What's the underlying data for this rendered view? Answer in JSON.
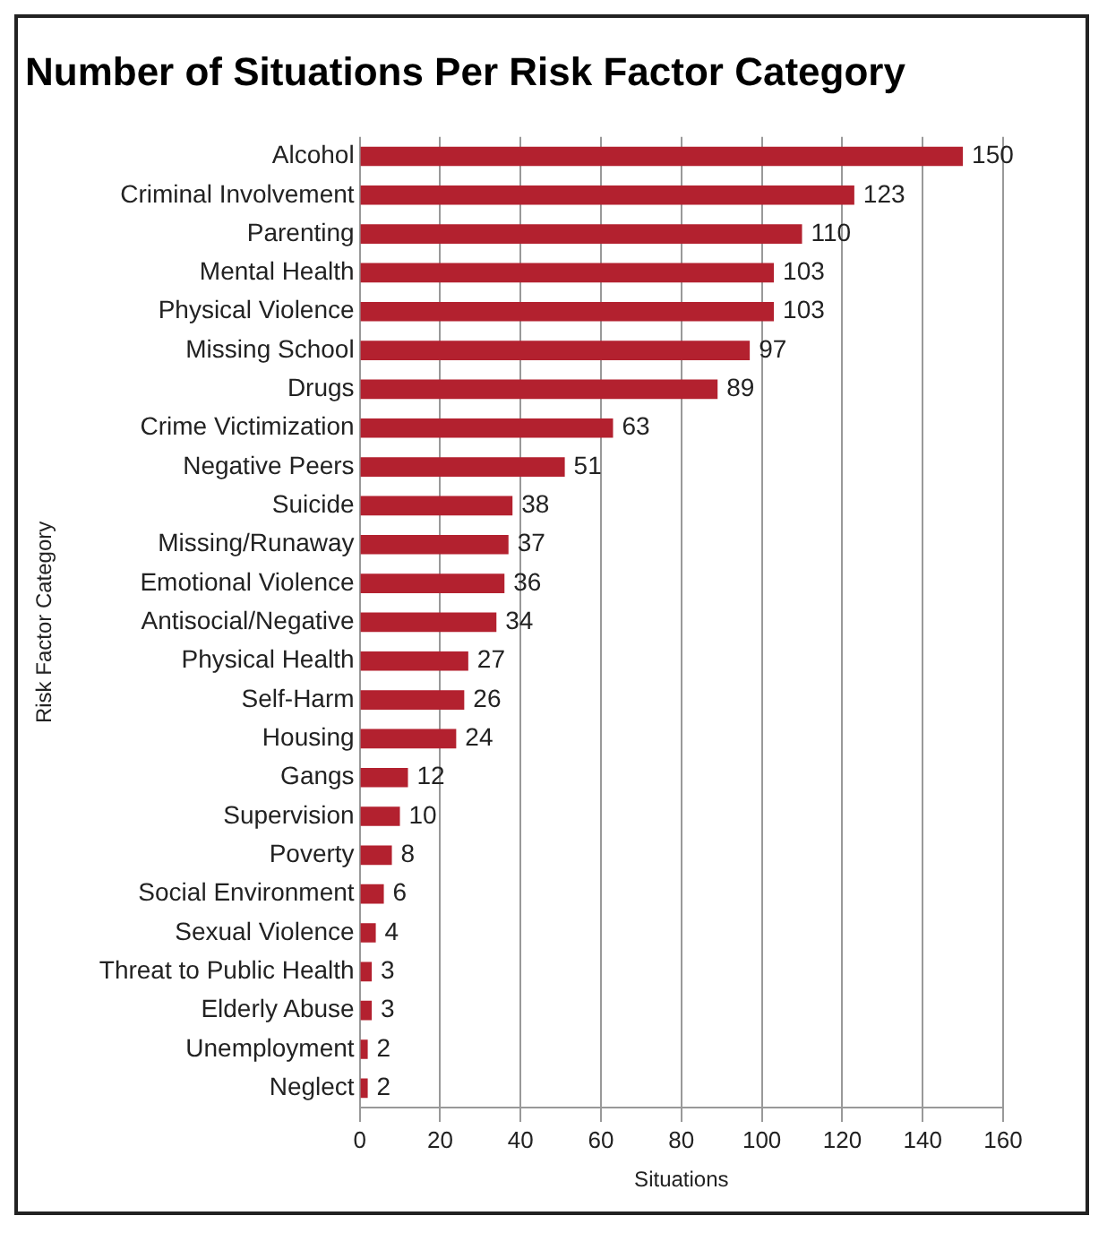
{
  "chart_data": {
    "type": "bar",
    "orientation": "horizontal",
    "title": "Number of Situations Per Risk Factor Category",
    "xlabel": "Situations",
    "ylabel": "Risk Factor Category",
    "categories": [
      "Alcohol",
      "Criminal Involvement",
      "Parenting",
      "Mental Health",
      "Physical Violence",
      "Missing School",
      "Drugs",
      "Crime Victimization",
      "Negative Peers",
      "Suicide",
      "Missing/Runaway",
      "Emotional Violence",
      "Antisocial/Negative",
      "Physical Health",
      "Self-Harm",
      "Housing",
      "Gangs",
      "Supervision",
      "Poverty",
      "Social Environment",
      "Sexual Violence",
      "Threat to Public Health",
      "Elderly Abuse",
      "Unemployment",
      "Neglect"
    ],
    "values": [
      150,
      123,
      110,
      103,
      103,
      97,
      89,
      63,
      51,
      38,
      37,
      36,
      34,
      27,
      26,
      24,
      12,
      10,
      8,
      6,
      4,
      3,
      3,
      2,
      2
    ],
    "color": "#b3212f",
    "xlim": [
      0,
      160
    ],
    "xticks": [
      0,
      20,
      40,
      60,
      80,
      100,
      120,
      140,
      160
    ],
    "grid": "x",
    "data_labels": true
  }
}
